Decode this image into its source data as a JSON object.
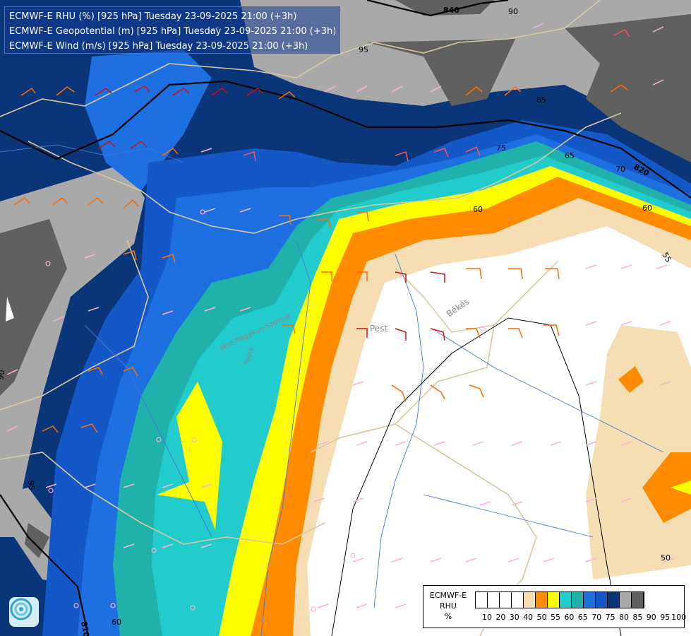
{
  "titles": [
    "ECMWF-E RHU (%) [925 hPa] Tuesday 23-09-2025 21:00 (+3h)",
    "ECMWF-E Geopotential (m) [925 hPa] Tuesday 23-09-2025 21:00 (+3h)",
    "ECMWF-E Wind (m/s) [925 hPa] Tuesday 23-09-2025 21:00 (+3h)"
  ],
  "legend": {
    "label_line1": "ECMWF-E",
    "label_line2": "RHU",
    "label_line3": "%",
    "tick_labels": [
      "10",
      "20",
      "30",
      "40",
      "50",
      "55",
      "60",
      "65",
      "70",
      "75",
      "80",
      "85",
      "90",
      "95",
      "100"
    ],
    "colors": [
      "#ffffff",
      "#ffffff",
      "#ffffff",
      "#ffffff",
      "#f5deb3",
      "#ff8c00",
      "#ffff00",
      "#22cccc",
      "#20b2aa",
      "#1e6fe0",
      "#1458c8",
      "#0a3578",
      "#a9a9a9",
      "#606060"
    ]
  },
  "contour_labels": {
    "geopotential": [
      "840",
      "820",
      "810"
    ],
    "rhu": [
      "90",
      "95",
      "85",
      "75",
      "70",
      "65",
      "60",
      "55",
      "50",
      "90",
      "95",
      "60",
      "60"
    ]
  },
  "places": [
    "Pest",
    "Békés",
    "Jász-Nagykun-Szolnok",
    "Tolna"
  ],
  "colors": {
    "rhu_100": "#606060",
    "rhu_95": "#a9a9a9",
    "rhu_90": "#0a3578",
    "rhu_85": "#1458c8",
    "rhu_80": "#1e6fe0",
    "rhu_75": "#20b2aa",
    "rhu_70": "#22cccc",
    "rhu_65": "#ffff00",
    "rhu_60": "#ff8c00",
    "rhu_55": "#f5deb3",
    "rhu_50": "#ffffff",
    "border": "#d8c8a0",
    "river": "#4477cc"
  },
  "logo_icon": "ecmwf-swirl-icon"
}
